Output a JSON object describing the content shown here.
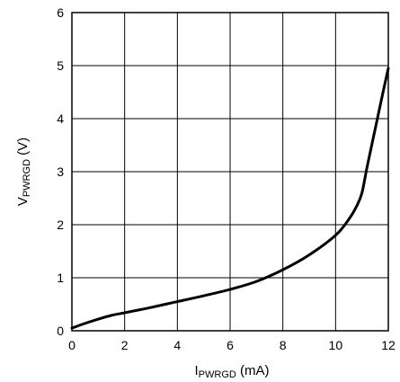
{
  "chart_data": {
    "type": "line",
    "xlabel": {
      "main": "I",
      "sub": "PWRGD",
      "unit": " (mA)"
    },
    "ylabel": {
      "main": "V",
      "sub": "PWRGD",
      "unit": " (V)"
    },
    "xlim": [
      0,
      12
    ],
    "ylim": [
      0,
      6
    ],
    "x_ticks": [
      "0",
      "2",
      "4",
      "6",
      "8",
      "10",
      "12"
    ],
    "y_ticks": [
      "0",
      "1",
      "2",
      "3",
      "4",
      "5",
      "6"
    ],
    "grid": true,
    "series": [
      {
        "x": [
          0,
          0.5,
          1,
          1.5,
          2,
          3,
          4,
          5,
          6,
          7,
          8,
          9,
          10,
          10.5,
          10.8,
          11,
          11.2,
          11.5,
          11.8,
          12
        ],
        "y": [
          0.05,
          0.14,
          0.22,
          0.29,
          0.34,
          0.44,
          0.55,
          0.66,
          0.78,
          0.93,
          1.15,
          1.43,
          1.8,
          2.1,
          2.35,
          2.6,
          3.1,
          3.8,
          4.5,
          4.95
        ],
        "color": "#000000"
      }
    ]
  }
}
